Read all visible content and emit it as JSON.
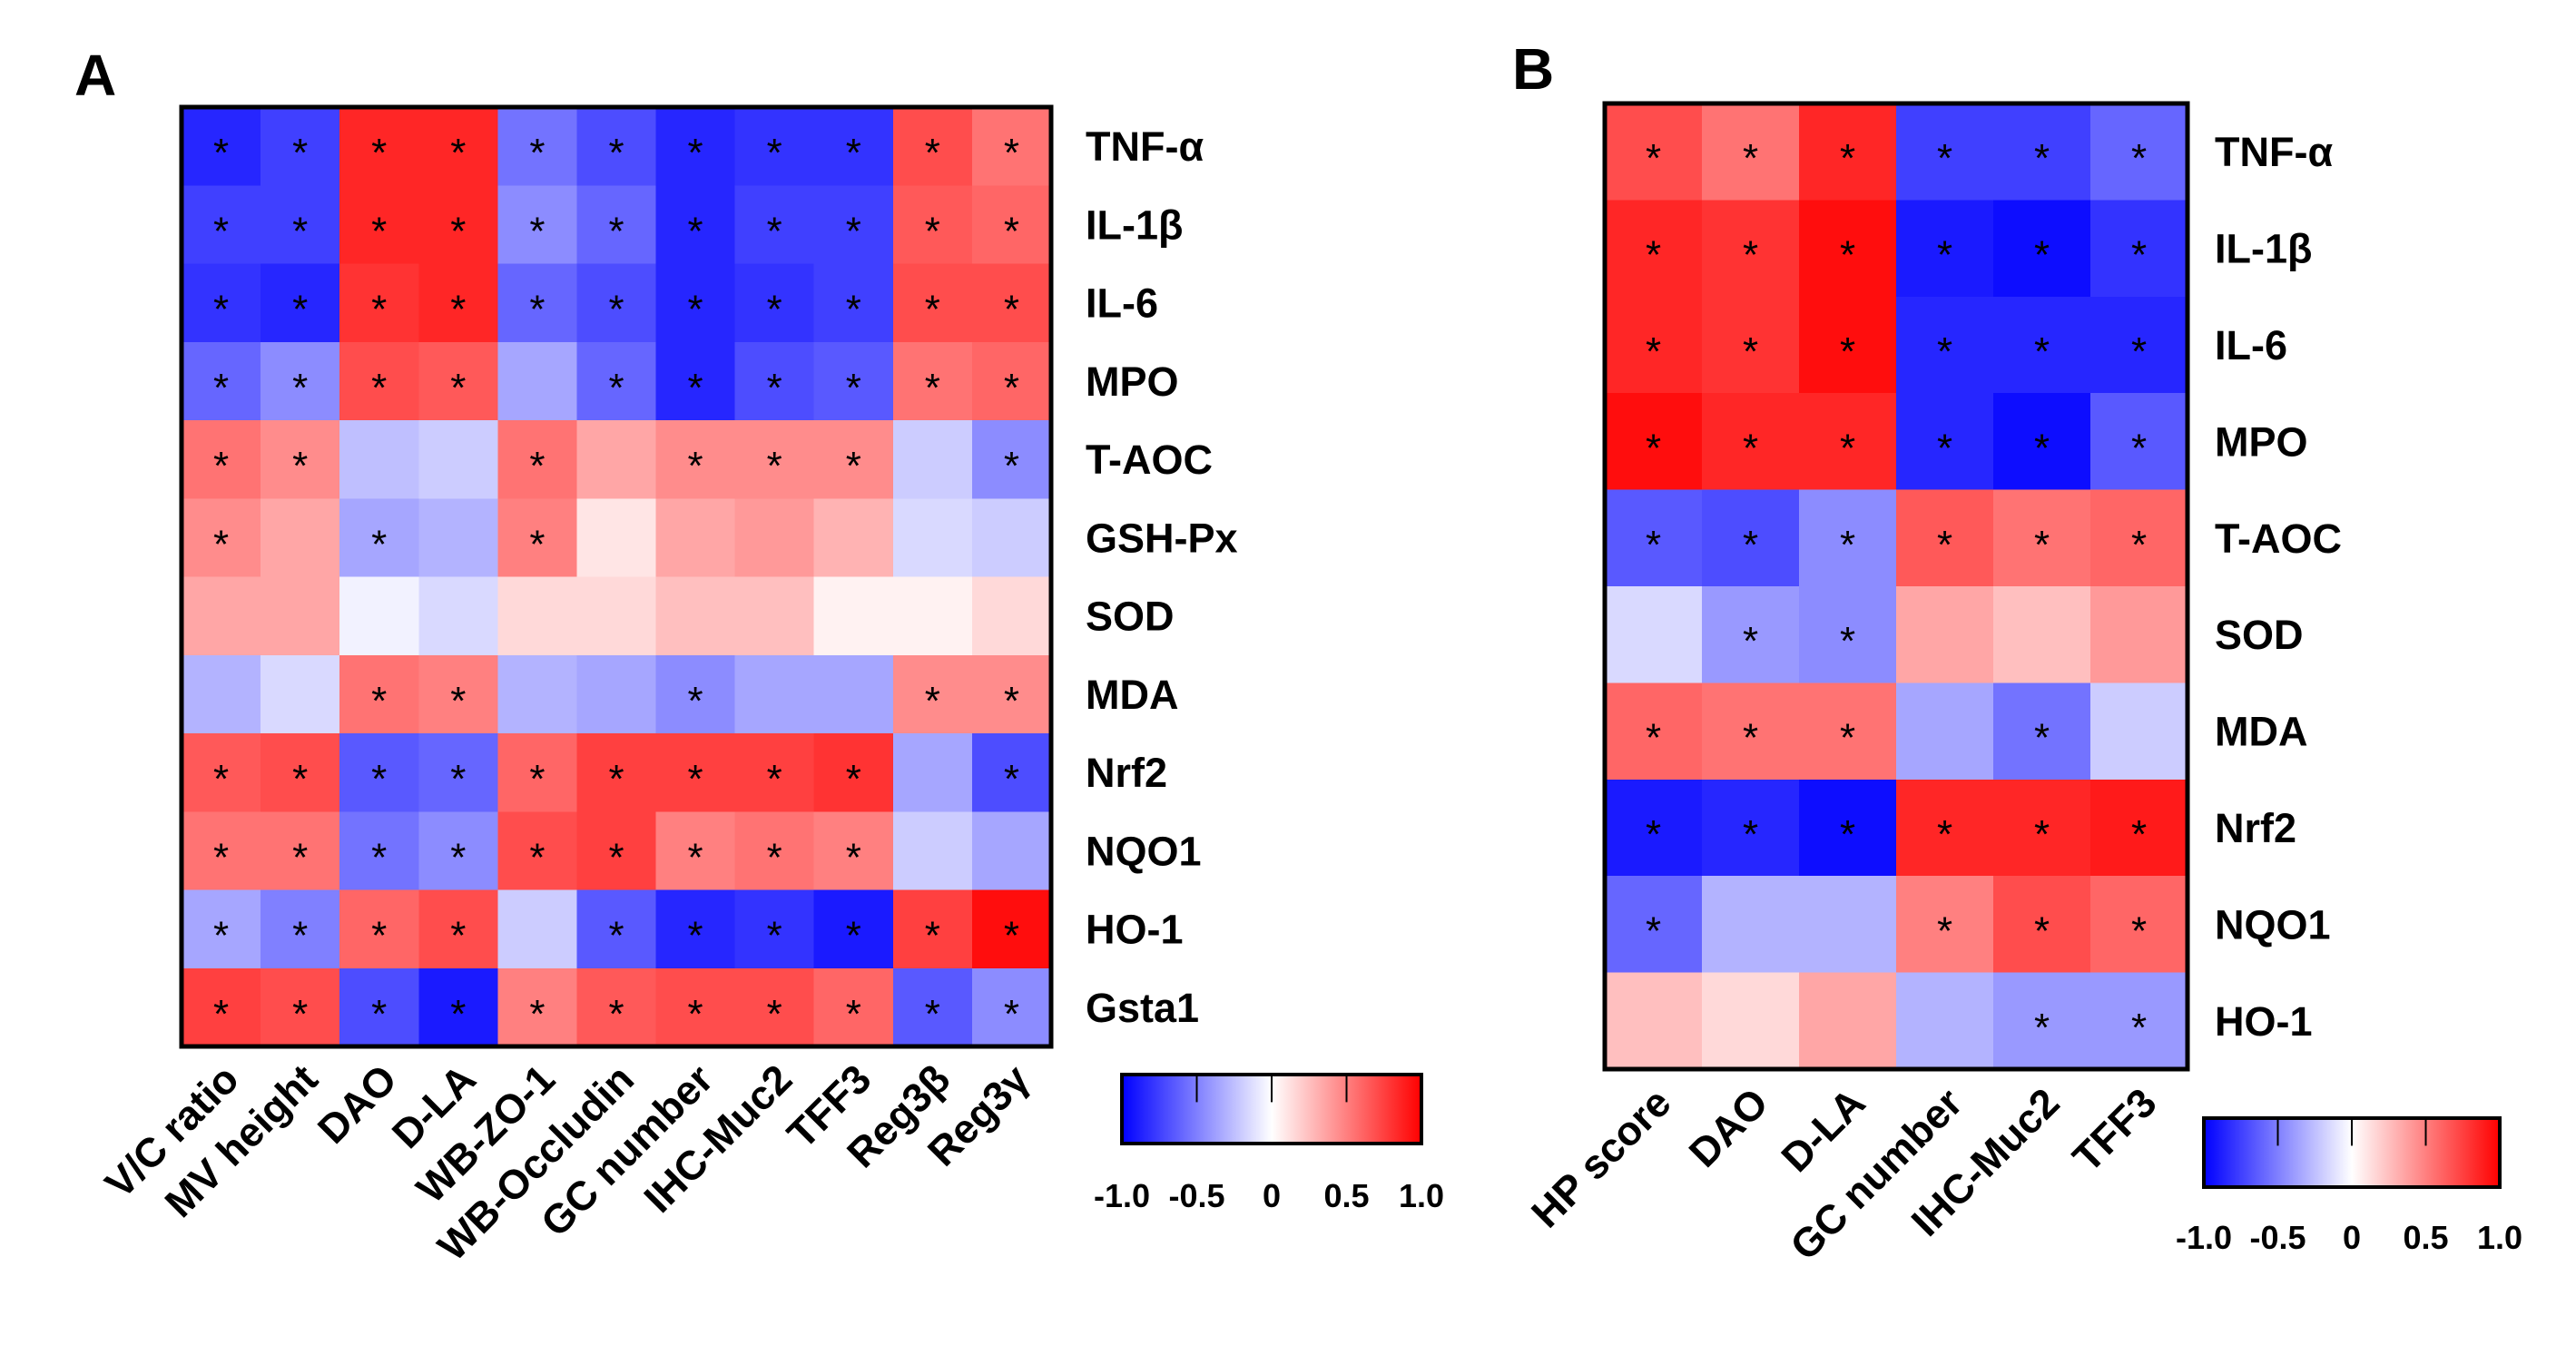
{
  "chart_data": [
    {
      "type": "heatmap",
      "panel": "A",
      "columns": [
        "V/C ratio",
        "MV height",
        "DAO",
        "D-LA",
        "WB-ZO-1",
        "WB-Occludin",
        "GC number",
        "IHC-Muc2",
        "TFF3",
        "Reg3β",
        "Reg3γ"
      ],
      "rows": [
        "TNF-α",
        "IL-1β",
        "IL-6",
        "MPO",
        "T-AOC",
        "GSH-Px",
        "SOD",
        "MDA",
        "Nrf2",
        "NQO1",
        "HO-1",
        "Gsta1"
      ],
      "values": [
        [
          -0.85,
          -0.75,
          0.85,
          0.85,
          -0.55,
          -0.7,
          -0.85,
          -0.8,
          -0.8,
          0.7,
          0.55
        ],
        [
          -0.75,
          -0.75,
          0.85,
          0.85,
          -0.45,
          -0.6,
          -0.85,
          -0.75,
          -0.75,
          0.65,
          0.6
        ],
        [
          -0.8,
          -0.85,
          0.8,
          0.85,
          -0.6,
          -0.7,
          -0.85,
          -0.8,
          -0.75,
          0.7,
          0.7
        ],
        [
          -0.6,
          -0.45,
          0.7,
          0.65,
          -0.35,
          -0.6,
          -0.85,
          -0.7,
          -0.65,
          0.55,
          0.6
        ],
        [
          0.55,
          0.45,
          -0.25,
          -0.2,
          0.55,
          0.35,
          0.45,
          0.45,
          0.45,
          -0.2,
          -0.45
        ],
        [
          0.45,
          0.35,
          -0.35,
          -0.3,
          0.5,
          0.1,
          0.35,
          0.4,
          0.3,
          -0.15,
          -0.2
        ],
        [
          0.35,
          0.35,
          -0.05,
          -0.15,
          0.15,
          0.15,
          0.25,
          0.25,
          0.05,
          0.05,
          0.15
        ],
        [
          -0.3,
          -0.15,
          0.55,
          0.5,
          -0.3,
          -0.35,
          -0.45,
          -0.35,
          -0.35,
          0.45,
          0.45
        ],
        [
          0.65,
          0.7,
          -0.65,
          -0.6,
          0.6,
          0.75,
          0.75,
          0.75,
          0.8,
          -0.35,
          -0.7
        ],
        [
          0.55,
          0.55,
          -0.55,
          -0.45,
          0.7,
          0.75,
          0.5,
          0.55,
          0.5,
          -0.2,
          -0.35
        ],
        [
          -0.35,
          -0.5,
          0.6,
          0.7,
          -0.2,
          -0.65,
          -0.85,
          -0.8,
          -0.9,
          0.75,
          0.95
        ],
        [
          0.75,
          0.7,
          -0.7,
          -0.9,
          0.5,
          0.65,
          0.7,
          0.7,
          0.6,
          -0.65,
          -0.45
        ]
      ],
      "significant": [
        [
          1,
          1,
          1,
          1,
          1,
          1,
          1,
          1,
          1,
          1,
          1
        ],
        [
          1,
          1,
          1,
          1,
          1,
          1,
          1,
          1,
          1,
          1,
          1
        ],
        [
          1,
          1,
          1,
          1,
          1,
          1,
          1,
          1,
          1,
          1,
          1
        ],
        [
          1,
          1,
          1,
          1,
          0,
          1,
          1,
          1,
          1,
          1,
          1
        ],
        [
          1,
          1,
          0,
          0,
          1,
          0,
          1,
          1,
          1,
          0,
          1
        ],
        [
          1,
          0,
          1,
          0,
          1,
          0,
          0,
          0,
          0,
          0,
          0
        ],
        [
          0,
          0,
          0,
          0,
          0,
          0,
          0,
          0,
          0,
          0,
          0
        ],
        [
          0,
          0,
          1,
          1,
          0,
          0,
          1,
          0,
          0,
          1,
          1
        ],
        [
          1,
          1,
          1,
          1,
          1,
          1,
          1,
          1,
          1,
          0,
          1
        ],
        [
          1,
          1,
          1,
          1,
          1,
          1,
          1,
          1,
          1,
          0,
          0
        ],
        [
          1,
          1,
          1,
          1,
          0,
          1,
          1,
          1,
          1,
          1,
          1
        ],
        [
          1,
          1,
          1,
          1,
          1,
          1,
          1,
          1,
          1,
          1,
          1
        ]
      ],
      "marker": "*",
      "colorbar": {
        "range": [
          -1.0,
          1.0
        ],
        "tick_labels": [
          "-1.0",
          "-0.5",
          "0",
          "0.5",
          "1.0"
        ],
        "low_color": "#0000ff",
        "mid_color": "#ffffff",
        "high_color": "#ff0000"
      }
    },
    {
      "type": "heatmap",
      "panel": "B",
      "columns": [
        "HP score",
        "DAO",
        "D-LA",
        "GC number",
        "IHC-Muc2",
        "TFF3"
      ],
      "rows": [
        "TNF-α",
        "IL-1β",
        "IL-6",
        "MPO",
        "T-AOC",
        "SOD",
        "MDA",
        "Nrf2",
        "NQO1",
        "HO-1"
      ],
      "values": [
        [
          0.7,
          0.55,
          0.85,
          -0.75,
          -0.75,
          -0.6
        ],
        [
          0.85,
          0.8,
          0.95,
          -0.9,
          -0.95,
          -0.8
        ],
        [
          0.85,
          0.8,
          0.95,
          -0.85,
          -0.85,
          -0.85
        ],
        [
          0.95,
          0.85,
          0.85,
          -0.85,
          -0.95,
          -0.65
        ],
        [
          -0.65,
          -0.7,
          -0.45,
          0.65,
          0.55,
          0.6
        ],
        [
          -0.15,
          -0.4,
          -0.45,
          0.35,
          0.25,
          0.4
        ],
        [
          0.6,
          0.55,
          0.55,
          -0.35,
          -0.55,
          -0.2
        ],
        [
          -0.9,
          -0.85,
          -0.95,
          0.85,
          0.85,
          0.9
        ],
        [
          -0.6,
          -0.3,
          -0.3,
          0.5,
          0.7,
          0.6
        ],
        [
          0.25,
          0.15,
          0.35,
          -0.3,
          -0.4,
          -0.4
        ]
      ],
      "significant": [
        [
          1,
          1,
          1,
          1,
          1,
          1
        ],
        [
          1,
          1,
          1,
          1,
          1,
          1
        ],
        [
          1,
          1,
          1,
          1,
          1,
          1
        ],
        [
          1,
          1,
          1,
          1,
          1,
          1
        ],
        [
          1,
          1,
          1,
          1,
          1,
          1
        ],
        [
          0,
          1,
          1,
          0,
          0,
          0
        ],
        [
          1,
          1,
          1,
          0,
          1,
          0
        ],
        [
          1,
          1,
          1,
          1,
          1,
          1
        ],
        [
          1,
          0,
          0,
          1,
          1,
          1
        ],
        [
          0,
          0,
          0,
          0,
          1,
          1
        ]
      ],
      "marker": "*",
      "colorbar": {
        "range": [
          -1.0,
          1.0
        ],
        "tick_labels": [
          "-1.0",
          "-0.5",
          "0",
          "0.5",
          "1.0"
        ],
        "low_color": "#0000ff",
        "mid_color": "#ffffff",
        "high_color": "#ff0000"
      }
    }
  ]
}
